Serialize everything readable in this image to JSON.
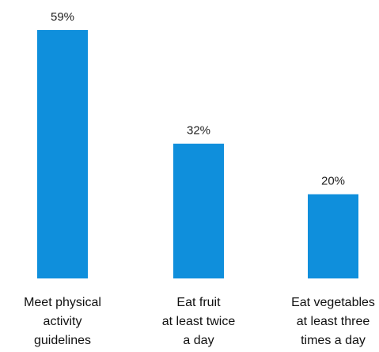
{
  "chart_data": {
    "type": "bar",
    "categories": [
      [
        "Meet physical",
        "activity",
        "guidelines"
      ],
      [
        "Eat fruit",
        "at least twice",
        "a day"
      ],
      [
        "Eat vegetables",
        "at least three",
        "times a day"
      ]
    ],
    "values": [
      59,
      32,
      20
    ],
    "value_labels": [
      "59%",
      "32%",
      "20%"
    ],
    "ylim": [
      0,
      59
    ],
    "grid": false,
    "legend": "none",
    "colors": {
      "bar": "#0f8fdc"
    }
  }
}
